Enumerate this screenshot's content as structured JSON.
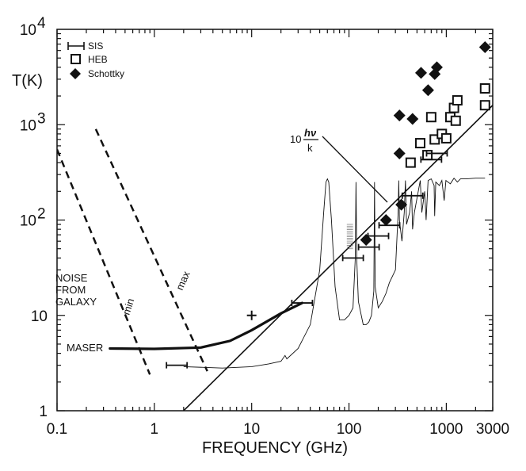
{
  "chart_data": {
    "type": "scatter",
    "title": "",
    "xlabel": "FREQUENCY (GHz)",
    "ylabel": "T(K)",
    "xscale": "log",
    "yscale": "log",
    "xlim": [
      0.1,
      3000
    ],
    "ylim": [
      1,
      10000
    ],
    "x_ticks": [
      {
        "value": 0.1,
        "label": "0.1"
      },
      {
        "value": 1,
        "label": "1"
      },
      {
        "value": 10,
        "label": "10"
      },
      {
        "value": 100,
        "label": "100"
      },
      {
        "value": 1000,
        "label": "1000"
      },
      {
        "value": 3000,
        "label": "3000"
      }
    ],
    "y_ticks": [
      {
        "value": 1,
        "label": "1",
        "exp": ""
      },
      {
        "value": 10,
        "label": "10",
        "exp": ""
      },
      {
        "value": 100,
        "label": "10",
        "exp": "2"
      },
      {
        "value": 1000,
        "label": "10",
        "exp": "3"
      },
      {
        "value": 10000,
        "label": "10",
        "exp": "4"
      }
    ],
    "legend": {
      "placement": "top-left",
      "entries": [
        {
          "marker": "sis-bar",
          "label": "SIS"
        },
        {
          "marker": "open-square",
          "label": "HEB"
        },
        {
          "marker": "filled-diamond",
          "label": "Schottky"
        }
      ]
    },
    "annotations": {
      "quantum_limit": {
        "prefix": "10",
        "numerator": "hν",
        "denominator": "k"
      },
      "galaxy_lines": [
        "NOISE",
        "FROM",
        "GALAXY"
      ],
      "galaxy_min": "min",
      "galaxy_max": "max",
      "maser": "MASER"
    },
    "series": [
      {
        "name": "Schottky",
        "marker": "filled-diamond",
        "points": [
          [
            150,
            62
          ],
          [
            240,
            100
          ],
          [
            345,
            145
          ],
          [
            330,
            500
          ],
          [
            330,
            1250
          ],
          [
            450,
            1150
          ],
          [
            550,
            3500
          ],
          [
            650,
            2300
          ],
          [
            760,
            3400
          ],
          [
            800,
            4000
          ],
          [
            2500,
            6500
          ]
        ]
      },
      {
        "name": "HEB",
        "marker": "open-square",
        "points": [
          [
            430,
            400
          ],
          [
            540,
            640
          ],
          [
            640,
            480
          ],
          [
            700,
            1200
          ],
          [
            760,
            700
          ],
          [
            900,
            800
          ],
          [
            1000,
            720
          ],
          [
            1100,
            1200
          ],
          [
            1200,
            1500
          ],
          [
            1250,
            1100
          ],
          [
            1300,
            1800
          ],
          [
            2500,
            2400
          ],
          [
            2500,
            1600
          ]
        ]
      },
      {
        "name": "SIS",
        "marker": "sis-bar",
        "points": [
          [
            1.7,
            3.0
          ],
          [
            33,
            13.5
          ],
          [
            110,
            40
          ],
          [
            160,
            52
          ],
          [
            200,
            68
          ],
          [
            260,
            88
          ],
          [
            450,
            180
          ],
          [
            800,
            500
          ],
          [
            700,
            430
          ]
        ]
      },
      {
        "name": "Maser",
        "marker": "none",
        "points": [
          [
            10,
            10
          ]
        ]
      }
    ],
    "lines": [
      {
        "name": "quantum-limit",
        "style": "solid",
        "points": [
          [
            2,
            1
          ],
          [
            3000,
            1600
          ]
        ]
      },
      {
        "name": "galaxy-min",
        "style": "dashed",
        "points": [
          [
            0.1,
            550
          ],
          [
            0.9,
            2.4
          ]
        ]
      },
      {
        "name": "galaxy-max",
        "style": "dashed",
        "points": [
          [
            0.25,
            900
          ],
          [
            3.5,
            2.6
          ]
        ]
      },
      {
        "name": "maser",
        "style": "thick",
        "points": [
          [
            0.35,
            4.5
          ],
          [
            1,
            4.45
          ],
          [
            3,
            4.6
          ],
          [
            6,
            5.4
          ],
          [
            10,
            7.0
          ],
          [
            20,
            10.5
          ],
          [
            33,
            13.5
          ]
        ]
      },
      {
        "name": "atmosphere",
        "style": "thin",
        "points": [
          [
            2,
            2.9
          ],
          [
            5,
            2.8
          ],
          [
            10,
            2.9
          ],
          [
            15,
            3.1
          ],
          [
            20,
            3.3
          ],
          [
            22,
            3.8
          ],
          [
            23,
            3.5
          ],
          [
            30,
            4.5
          ],
          [
            40,
            8
          ],
          [
            50,
            30
          ],
          [
            55,
            120
          ],
          [
            58,
            250
          ],
          [
            60,
            270
          ],
          [
            62,
            250
          ],
          [
            66,
            100
          ],
          [
            72,
            20
          ],
          [
            80,
            9
          ],
          [
            90,
            9
          ],
          [
            100,
            10
          ],
          [
            110,
            12
          ],
          [
            116,
            40
          ],
          [
            118,
            250
          ],
          [
            120,
            40
          ],
          [
            125,
            14
          ],
          [
            140,
            8
          ],
          [
            150,
            8
          ],
          [
            160,
            8.5
          ],
          [
            170,
            10
          ],
          [
            180,
            18
          ],
          [
            183,
            250
          ],
          [
            186,
            20
          ],
          [
            200,
            12
          ],
          [
            220,
            14
          ],
          [
            240,
            17
          ],
          [
            260,
            22
          ],
          [
            300,
            30
          ],
          [
            320,
            120
          ],
          [
            325,
            260
          ],
          [
            330,
            100
          ],
          [
            350,
            60
          ],
          [
            370,
            120
          ],
          [
            380,
            260
          ],
          [
            390,
            90
          ],
          [
            420,
            120
          ],
          [
            440,
            200
          ],
          [
            450,
            80
          ],
          [
            470,
            120
          ],
          [
            540,
            260
          ],
          [
            560,
            120
          ],
          [
            600,
            200
          ],
          [
            620,
            100
          ],
          [
            650,
            260
          ],
          [
            700,
            270
          ],
          [
            750,
            230
          ],
          [
            760,
            110
          ],
          [
            780,
            250
          ],
          [
            850,
            230
          ],
          [
            900,
            260
          ],
          [
            950,
            160
          ],
          [
            990,
            260
          ],
          [
            1100,
            240
          ],
          [
            1200,
            275
          ],
          [
            1300,
            250
          ],
          [
            1400,
            270
          ],
          [
            1600,
            270
          ],
          [
            2000,
            275
          ],
          [
            2500,
            275
          ]
        ]
      }
    ],
    "hatch_patch": {
      "x": [
        95,
        110
      ],
      "y": [
        48,
        90
      ]
    }
  }
}
